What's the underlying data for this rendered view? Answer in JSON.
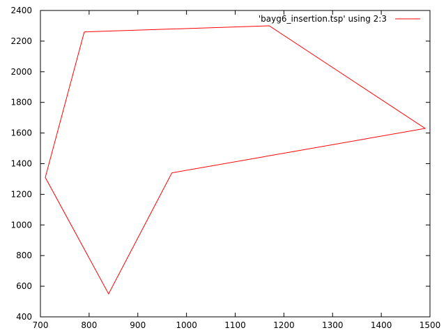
{
  "chart_data": {
    "type": "line",
    "title": "",
    "xlabel": "",
    "ylabel": "",
    "xlim": [
      700,
      1500
    ],
    "ylim": [
      400,
      2400
    ],
    "x_ticks": [
      700,
      800,
      900,
      1000,
      1100,
      1200,
      1300,
      1400,
      1500
    ],
    "y_ticks": [
      400,
      600,
      800,
      1000,
      1200,
      1400,
      1600,
      1800,
      2000,
      2200,
      2400
    ],
    "grid": false,
    "legend_position": "top-right",
    "series": [
      {
        "name": "'bayg6_insertion.tsp' using 2:3",
        "color": "#ff0000",
        "x": [
          790,
          1170,
          1490,
          970,
          840,
          710,
          790
        ],
        "y": [
          2260,
          2300,
          1630,
          1340,
          550,
          1310,
          2260
        ]
      }
    ]
  }
}
